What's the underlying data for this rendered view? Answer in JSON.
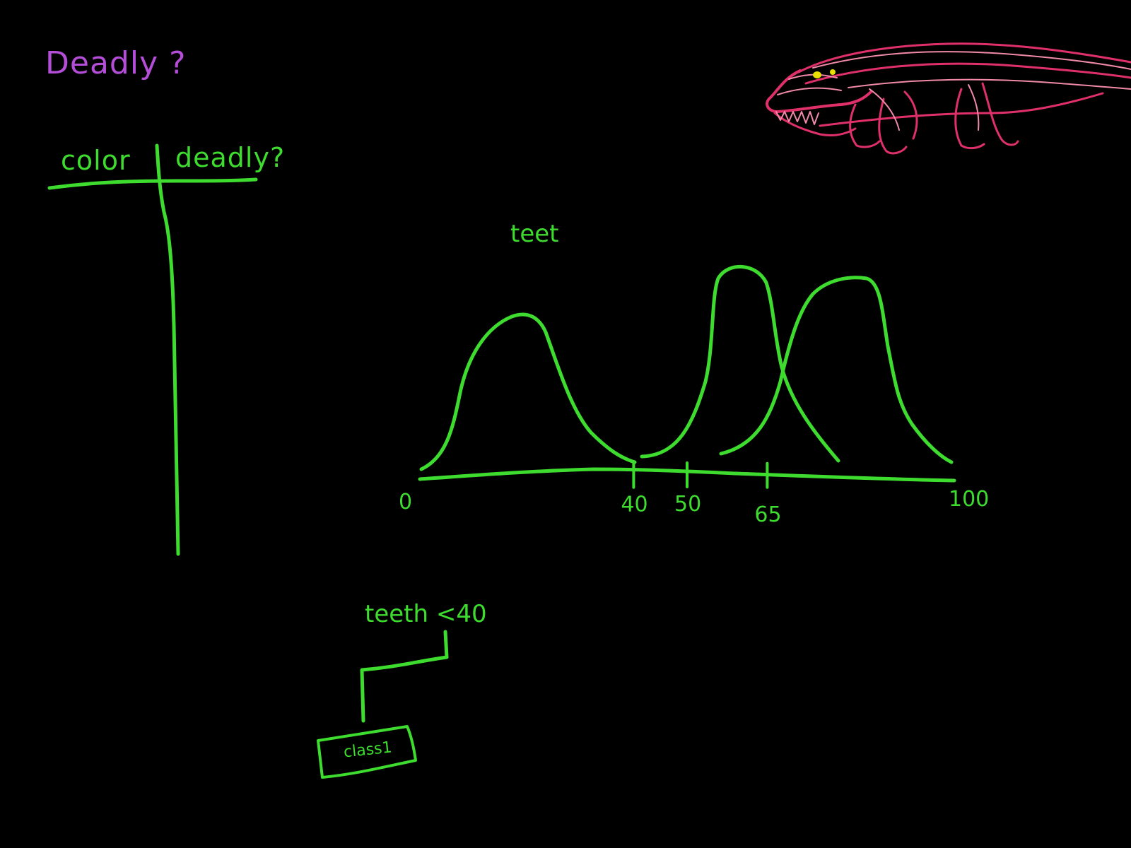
{
  "colors": {
    "background": "#000000",
    "green_ink": "#3ddc2e",
    "purple_ink": "#b44dd8",
    "pink_ink": "#e0306a",
    "light_pink_ink": "#f08aa8",
    "eye_yellow": "#e8e000"
  },
  "title": "Deadly ?",
  "table": {
    "col1_header": "color",
    "col2_header": "deadly?"
  },
  "plot": {
    "label": "teet",
    "axis_ticks": [
      {
        "value": 0,
        "label": "0"
      },
      {
        "value": 40,
        "label": "40"
      },
      {
        "value": 50,
        "label": "50"
      },
      {
        "value": 65,
        "label": "65"
      },
      {
        "value": 100,
        "label": "100"
      }
    ]
  },
  "tree": {
    "root_label": "teeth <40",
    "leaf_label": "class1"
  },
  "sketch": {
    "subject_icon": "crocodile-icon"
  }
}
